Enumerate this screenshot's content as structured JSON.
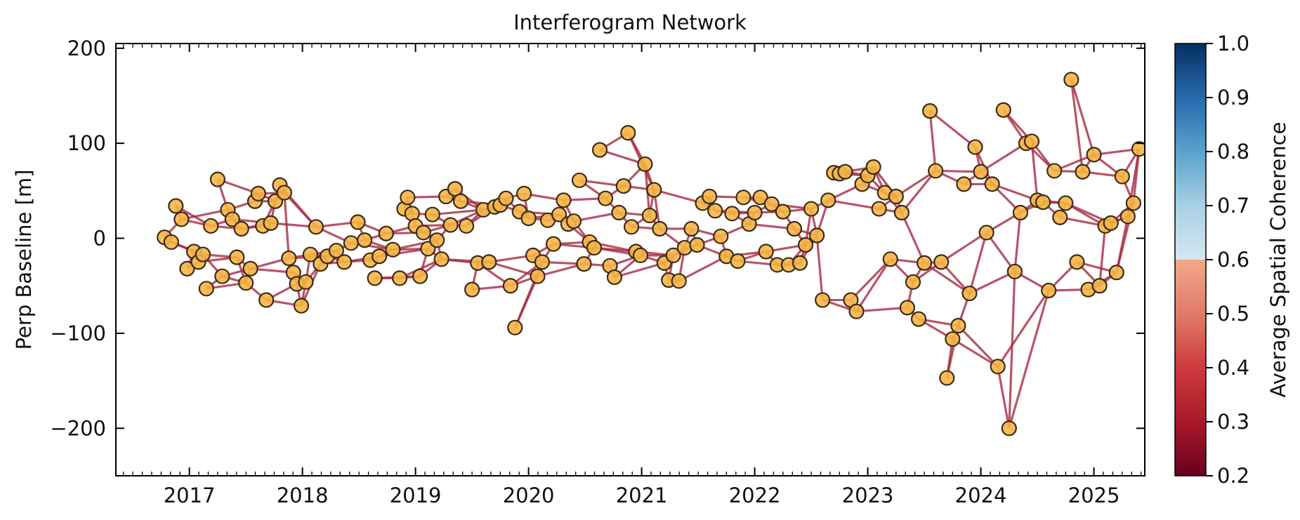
{
  "chart_data": {
    "type": "scatter",
    "title": "Interferogram Network",
    "ylabel": "Perp Baseline [m]",
    "xlabel": "",
    "xlim": [
      2016.35,
      2025.45
    ],
    "ylim": [
      -250,
      205
    ],
    "xticks": [
      2017,
      2018,
      2019,
      2020,
      2021,
      2022,
      2023,
      2024,
      2025
    ],
    "yticks": [
      -200,
      -100,
      0,
      100,
      200
    ],
    "ytick_labels": [
      "−200",
      "−100",
      "0",
      "100",
      "200"
    ],
    "grid": false,
    "legend": "none",
    "colorbar": {
      "label": "Average Spatial Coherence",
      "range": [
        0.2,
        1.0
      ],
      "ticks": [
        "0.2",
        "0.3",
        "0.4",
        "0.5",
        "0.6",
        "0.7",
        "0.8",
        "0.9",
        "1.0"
      ],
      "colormap": "RdBu"
    },
    "marker_color": "#f5b545",
    "marker_edge": "#3a2a1a",
    "edge_color": "#a52a42",
    "edge_coherence": 0.35,
    "acquisitions": [
      [
        2016.78,
        1
      ],
      [
        2016.84,
        -4
      ],
      [
        2016.88,
        34
      ],
      [
        2016.93,
        20
      ],
      [
        2016.98,
        -32
      ],
      [
        2017.04,
        -14
      ],
      [
        2017.08,
        -25
      ],
      [
        2017.12,
        -17
      ],
      [
        2017.15,
        -53
      ],
      [
        2017.19,
        13
      ],
      [
        2017.25,
        62
      ],
      [
        2017.29,
        -40
      ],
      [
        2017.34,
        30
      ],
      [
        2017.38,
        20
      ],
      [
        2017.42,
        -20
      ],
      [
        2017.46,
        10
      ],
      [
        2017.5,
        -47
      ],
      [
        2017.54,
        -32
      ],
      [
        2017.58,
        39
      ],
      [
        2017.61,
        47
      ],
      [
        2017.65,
        13
      ],
      [
        2017.68,
        -65
      ],
      [
        2017.72,
        16
      ],
      [
        2017.76,
        39
      ],
      [
        2017.8,
        56
      ],
      [
        2017.84,
        48
      ],
      [
        2017.88,
        -21
      ],
      [
        2017.92,
        -36
      ],
      [
        2017.95,
        -48
      ],
      [
        2017.99,
        -71
      ],
      [
        2018.03,
        -46
      ],
      [
        2018.07,
        -17
      ],
      [
        2018.12,
        12
      ],
      [
        2018.16,
        -27
      ],
      [
        2018.22,
        -19
      ],
      [
        2018.3,
        -13
      ],
      [
        2018.37,
        -25
      ],
      [
        2018.43,
        -5
      ],
      [
        2018.49,
        17
      ],
      [
        2018.55,
        -2
      ],
      [
        2018.6,
        -23
      ],
      [
        2018.64,
        -42
      ],
      [
        2018.68,
        -19
      ],
      [
        2018.74,
        5
      ],
      [
        2018.8,
        -12
      ],
      [
        2018.86,
        -42
      ],
      [
        2018.9,
        31
      ],
      [
        2018.93,
        43
      ],
      [
        2018.97,
        26
      ],
      [
        2019.0,
        13
      ],
      [
        2019.04,
        -40
      ],
      [
        2019.07,
        6
      ],
      [
        2019.11,
        -11
      ],
      [
        2019.15,
        25
      ],
      [
        2019.19,
        -2
      ],
      [
        2019.23,
        -22
      ],
      [
        2019.27,
        44
      ],
      [
        2019.31,
        14
      ],
      [
        2019.35,
        52
      ],
      [
        2019.4,
        39
      ],
      [
        2019.45,
        13
      ],
      [
        2019.5,
        -54
      ],
      [
        2019.55,
        -26
      ],
      [
        2019.6,
        30
      ],
      [
        2019.65,
        -25
      ],
      [
        2019.7,
        33
      ],
      [
        2019.75,
        35
      ],
      [
        2019.8,
        42
      ],
      [
        2019.84,
        -50
      ],
      [
        2019.88,
        -94
      ],
      [
        2019.92,
        28
      ],
      [
        2019.96,
        47
      ],
      [
        2020.0,
        21
      ],
      [
        2020.04,
        -18
      ],
      [
        2020.08,
        -40
      ],
      [
        2020.12,
        -25
      ],
      [
        2020.17,
        19
      ],
      [
        2020.22,
        -6
      ],
      [
        2020.27,
        25
      ],
      [
        2020.31,
        40
      ],
      [
        2020.35,
        15
      ],
      [
        2020.4,
        18
      ],
      [
        2020.45,
        61
      ],
      [
        2020.49,
        -27
      ],
      [
        2020.54,
        -4
      ],
      [
        2020.58,
        -10
      ],
      [
        2020.63,
        93
      ],
      [
        2020.68,
        42
      ],
      [
        2020.72,
        -29
      ],
      [
        2020.76,
        -41
      ],
      [
        2020.8,
        27
      ],
      [
        2020.84,
        55
      ],
      [
        2020.88,
        111
      ],
      [
        2020.91,
        12
      ],
      [
        2020.95,
        -14
      ],
      [
        2020.99,
        -18
      ],
      [
        2021.03,
        78
      ],
      [
        2021.07,
        24
      ],
      [
        2021.11,
        51
      ],
      [
        2021.16,
        10
      ],
      [
        2021.2,
        -26
      ],
      [
        2021.24,
        -44
      ],
      [
        2021.28,
        -18
      ],
      [
        2021.33,
        -45
      ],
      [
        2021.38,
        -10
      ],
      [
        2021.44,
        10
      ],
      [
        2021.49,
        -7
      ],
      [
        2021.54,
        37
      ],
      [
        2021.6,
        44
      ],
      [
        2021.65,
        29
      ],
      [
        2021.7,
        2
      ],
      [
        2021.75,
        -19
      ],
      [
        2021.8,
        26
      ],
      [
        2021.85,
        -24
      ],
      [
        2021.9,
        43
      ],
      [
        2021.95,
        15
      ],
      [
        2022.0,
        27
      ],
      [
        2022.05,
        43
      ],
      [
        2022.1,
        -14
      ],
      [
        2022.15,
        36
      ],
      [
        2022.2,
        -28
      ],
      [
        2022.25,
        28
      ],
      [
        2022.3,
        -28
      ],
      [
        2022.35,
        10
      ],
      [
        2022.4,
        -26
      ],
      [
        2022.45,
        -7
      ],
      [
        2022.5,
        31
      ],
      [
        2022.55,
        3
      ],
      [
        2022.6,
        -65
      ],
      [
        2022.65,
        40
      ],
      [
        2022.7,
        69
      ],
      [
        2022.75,
        68
      ],
      [
        2022.8,
        70
      ],
      [
        2022.85,
        -65
      ],
      [
        2022.9,
        -77
      ],
      [
        2022.95,
        57
      ],
      [
        2023.0,
        66
      ],
      [
        2023.05,
        75
      ],
      [
        2023.1,
        31
      ],
      [
        2023.15,
        48
      ],
      [
        2023.2,
        -22
      ],
      [
        2023.25,
        44
      ],
      [
        2023.3,
        27
      ],
      [
        2023.35,
        -73
      ],
      [
        2023.4,
        -46
      ],
      [
        2023.45,
        -85
      ],
      [
        2023.5,
        -26
      ],
      [
        2023.55,
        134
      ],
      [
        2023.6,
        71
      ],
      [
        2023.65,
        -25
      ],
      [
        2023.7,
        -147
      ],
      [
        2023.75,
        -106
      ],
      [
        2023.8,
        -92
      ],
      [
        2023.85,
        57
      ],
      [
        2023.9,
        -58
      ],
      [
        2023.95,
        96
      ],
      [
        2024.0,
        70
      ],
      [
        2024.05,
        6
      ],
      [
        2024.1,
        57
      ],
      [
        2024.15,
        -135
      ],
      [
        2024.2,
        135
      ],
      [
        2024.25,
        -200
      ],
      [
        2024.3,
        -35
      ],
      [
        2024.35,
        27
      ],
      [
        2024.4,
        100
      ],
      [
        2024.45,
        102
      ],
      [
        2024.5,
        40
      ],
      [
        2024.55,
        38
      ],
      [
        2024.6,
        -55
      ],
      [
        2024.65,
        71
      ],
      [
        2024.7,
        22
      ],
      [
        2024.75,
        37
      ],
      [
        2024.8,
        167
      ],
      [
        2024.85,
        -25
      ],
      [
        2024.9,
        70
      ],
      [
        2024.95,
        -54
      ],
      [
        2025.0,
        88
      ],
      [
        2025.05,
        -50
      ],
      [
        2025.1,
        13
      ],
      [
        2025.15,
        16
      ],
      [
        2025.2,
        -36
      ],
      [
        2025.25,
        65
      ],
      [
        2025.3,
        23
      ],
      [
        2025.35,
        37
      ],
      [
        2025.4,
        94
      ]
    ]
  }
}
